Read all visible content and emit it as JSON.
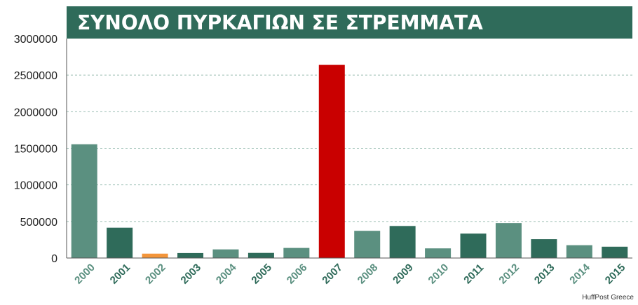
{
  "chart_data": {
    "type": "bar",
    "title": "ΣΥΝΟΛΟ ΠΥΡΚΑΓΙΩΝ ΣΕ ΣΤΡΕΜΜΑΤΑ",
    "xlabel": "",
    "ylabel": "",
    "ylim": [
      0,
      3000000
    ],
    "yticks": [
      0,
      500000,
      1000000,
      1500000,
      2000000,
      2500000,
      3000000
    ],
    "grid": true,
    "categories": [
      "2000",
      "2001",
      "2002",
      "2003",
      "2004",
      "2005",
      "2006",
      "2007",
      "2008",
      "2009",
      "2010",
      "2011",
      "2012",
      "2013",
      "2014",
      "2015"
    ],
    "values": [
      1555000,
      415000,
      60000,
      68000,
      118000,
      70000,
      138000,
      2640000,
      372000,
      438000,
      132000,
      334000,
      478000,
      258000,
      175000,
      155000
    ],
    "bar_colors": [
      "#5b9080",
      "#2f6b5a",
      "#f3953a",
      "#2f6b5a",
      "#5b9080",
      "#2f6b5a",
      "#5b9080",
      "#c90000",
      "#5b9080",
      "#2f6b5a",
      "#5b9080",
      "#2f6b5a",
      "#5b9080",
      "#2f6b5a",
      "#5b9080",
      "#2f6b5a"
    ],
    "tick_colors": [
      "#5b9080",
      "#2f6b5a",
      "#5b9080",
      "#2f6b5a",
      "#5b9080",
      "#2f6b5a",
      "#5b9080",
      "#2f6b5a",
      "#5b9080",
      "#2f6b5a",
      "#5b9080",
      "#2f6b5a",
      "#5b9080",
      "#2f6b5a",
      "#5b9080",
      "#2f6b5a"
    ]
  },
  "colors": {
    "title_bg": "#2f6b5a",
    "title_text": "#ffffff",
    "grid": "#9cbfb4",
    "axis": "#555555"
  },
  "credit": "HuffPost Greece"
}
